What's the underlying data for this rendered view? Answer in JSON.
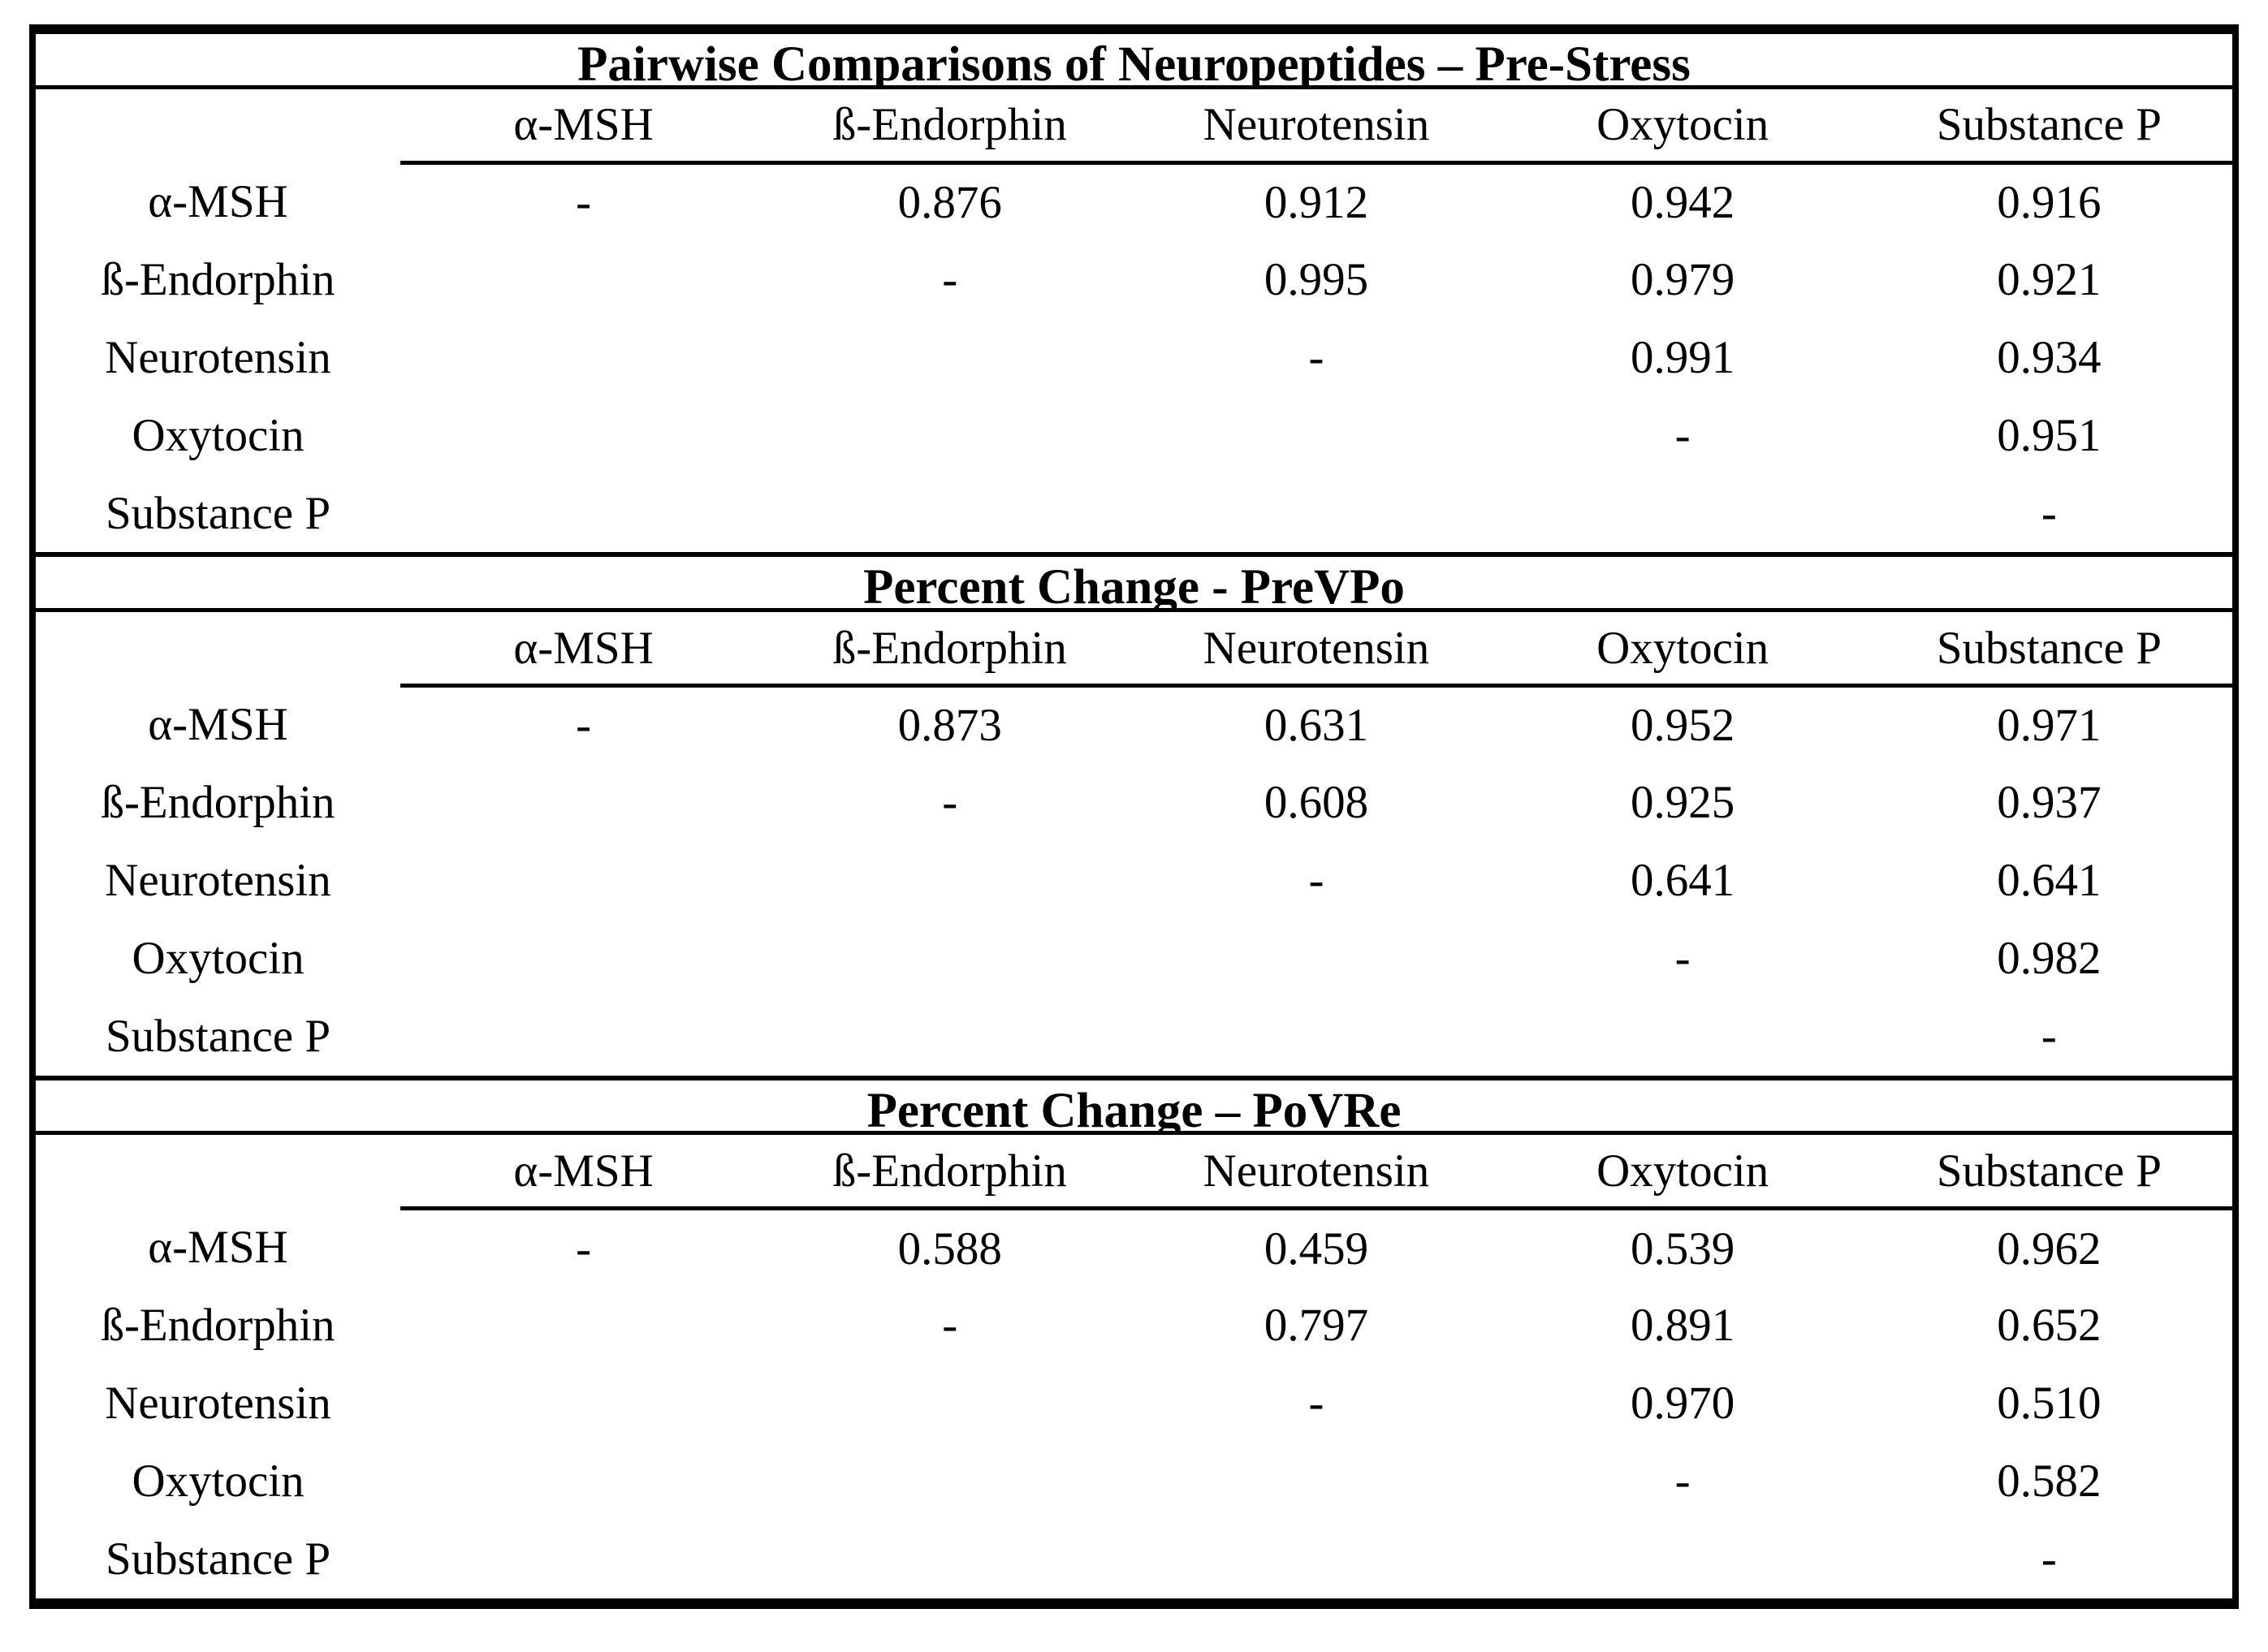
{
  "table": {
    "columns": [
      "α-MSH",
      "ß-Endorphin",
      "Neurotensin",
      "Oxytocin",
      "Substance P"
    ],
    "sections": [
      {
        "title": "Pairwise Comparisons of Neuropeptides – Pre-Stress",
        "rows": [
          {
            "label": "α-MSH",
            "cells": [
              {
                "t": "-",
                "b": false
              },
              {
                "t": "0.876",
                "b": false
              },
              {
                "t": "0.912",
                "b": true
              },
              {
                "t": "0.942",
                "b": true
              },
              {
                "t": "0.916",
                "b": true
              }
            ]
          },
          {
            "label": "ß-Endorphin",
            "cells": [
              {
                "t": "",
                "b": false
              },
              {
                "t": "-",
                "b": false
              },
              {
                "t": "0.995",
                "b": true
              },
              {
                "t": "0.979",
                "b": true
              },
              {
                "t": "0.921",
                "b": true
              }
            ]
          },
          {
            "label": "Neurotensin",
            "cells": [
              {
                "t": "",
                "b": false
              },
              {
                "t": "",
                "b": false
              },
              {
                "t": "-",
                "b": false
              },
              {
                "t": "0.991",
                "b": true
              },
              {
                "t": "0.934",
                "b": true
              }
            ]
          },
          {
            "label": "Oxytocin",
            "cells": [
              {
                "t": "",
                "b": false
              },
              {
                "t": "",
                "b": false
              },
              {
                "t": "",
                "b": false
              },
              {
                "t": "-",
                "b": false
              },
              {
                "t": "0.951",
                "b": true
              }
            ]
          },
          {
            "label": "Substance P",
            "cells": [
              {
                "t": "",
                "b": false
              },
              {
                "t": "",
                "b": false
              },
              {
                "t": "",
                "b": false
              },
              {
                "t": "",
                "b": false
              },
              {
                "t": "-",
                "b": false
              }
            ]
          }
        ]
      },
      {
        "title": "Percent Change - PreVPo",
        "rows": [
          {
            "label": "α-MSH",
            "cells": [
              {
                "t": "-",
                "b": false
              },
              {
                "t": "0.873",
                "b": false
              },
              {
                "t": "0.631",
                "b": false
              },
              {
                "t": "0.952",
                "b": true
              },
              {
                "t": "0.971",
                "b": true
              }
            ]
          },
          {
            "label": "ß-Endorphin",
            "cells": [
              {
                "t": "",
                "b": false
              },
              {
                "t": "-",
                "b": false
              },
              {
                "t": "0.608",
                "b": false
              },
              {
                "t": "0.925",
                "b": true
              },
              {
                "t": "0.937",
                "b": true
              }
            ]
          },
          {
            "label": "Neurotensin",
            "cells": [
              {
                "t": "",
                "b": false
              },
              {
                "t": "",
                "b": false
              },
              {
                "t": "-",
                "b": false
              },
              {
                "t": "0.641",
                "b": false
              },
              {
                "t": "0.641",
                "b": false
              }
            ]
          },
          {
            "label": "Oxytocin",
            "cells": [
              {
                "t": "",
                "b": false
              },
              {
                "t": "",
                "b": false
              },
              {
                "t": "",
                "b": false
              },
              {
                "t": "-",
                "b": false
              },
              {
                "t": "0.982",
                "b": true
              }
            ]
          },
          {
            "label": "Substance P",
            "cells": [
              {
                "t": "",
                "b": false
              },
              {
                "t": "",
                "b": false
              },
              {
                "t": "",
                "b": false
              },
              {
                "t": "",
                "b": false
              },
              {
                "t": "-",
                "b": false
              }
            ]
          }
        ]
      },
      {
        "title": "Percent Change – PoVRe",
        "rows": [
          {
            "label": "α-MSH",
            "cells": [
              {
                "t": "-",
                "b": false
              },
              {
                "t": "0.588",
                "b": false
              },
              {
                "t": "0.459",
                "b": false
              },
              {
                "t": "0.539",
                "b": false
              },
              {
                "t": "0.962",
                "b": true
              }
            ]
          },
          {
            "label": "ß-Endorphin",
            "cells": [
              {
                "t": "",
                "b": false
              },
              {
                "t": "-",
                "b": false
              },
              {
                "t": "0.797",
                "b": false
              },
              {
                "t": "0.891",
                "b": false
              },
              {
                "t": "0.652",
                "b": false
              }
            ]
          },
          {
            "label": "Neurotensin",
            "cells": [
              {
                "t": "",
                "b": false
              },
              {
                "t": "",
                "b": false
              },
              {
                "t": "-",
                "b": false
              },
              {
                "t": "0.970",
                "b": true
              },
              {
                "t": "0.510",
                "b": false
              }
            ]
          },
          {
            "label": "Oxytocin",
            "cells": [
              {
                "t": "",
                "b": false
              },
              {
                "t": "",
                "b": false
              },
              {
                "t": "",
                "b": false
              },
              {
                "t": "-",
                "b": false
              },
              {
                "t": "0.582",
                "b": false
              }
            ]
          },
          {
            "label": "Substance P",
            "cells": [
              {
                "t": "",
                "b": false
              },
              {
                "t": "",
                "b": false
              },
              {
                "t": "",
                "b": false
              },
              {
                "t": "",
                "b": false
              },
              {
                "t": "-",
                "b": false
              }
            ]
          }
        ]
      }
    ],
    "colors": {
      "border": "#000000",
      "text": "#000000",
      "background": "#ffffff"
    }
  }
}
